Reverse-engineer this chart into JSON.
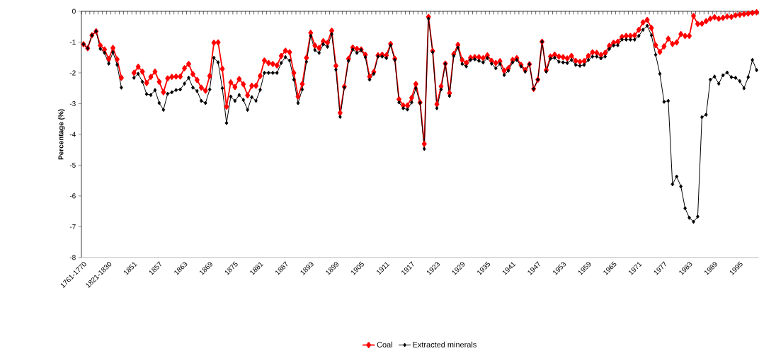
{
  "chart_data": {
    "type": "line",
    "ylabel": "Percentage (%)",
    "categories": [
      "1761-1770",
      null,
      null,
      null,
      null,
      null,
      "1821-1830",
      null,
      null,
      null,
      null,
      null,
      "1851",
      null,
      null,
      null,
      null,
      null,
      "1857",
      null,
      null,
      null,
      null,
      null,
      "1863",
      null,
      null,
      null,
      null,
      null,
      "1869",
      null,
      null,
      null,
      null,
      null,
      "1875",
      null,
      null,
      null,
      null,
      null,
      "1881",
      null,
      null,
      null,
      null,
      null,
      "1887",
      null,
      null,
      null,
      null,
      null,
      "1893",
      null,
      null,
      null,
      null,
      null,
      "1899",
      null,
      null,
      null,
      null,
      null,
      "1905",
      null,
      null,
      null,
      null,
      null,
      "1911",
      null,
      null,
      null,
      null,
      null,
      "1917",
      null,
      null,
      null,
      null,
      null,
      "1923",
      null,
      null,
      null,
      null,
      null,
      "1929",
      null,
      null,
      null,
      null,
      null,
      "1935",
      null,
      null,
      null,
      null,
      null,
      "1941",
      null,
      null,
      null,
      null,
      null,
      "1947",
      null,
      null,
      null,
      null,
      null,
      "1953",
      null,
      null,
      null,
      null,
      null,
      "1959",
      null,
      null,
      null,
      null,
      null,
      "1965",
      null,
      null,
      null,
      null,
      null,
      "1971",
      null,
      null,
      null,
      null,
      null,
      "1977",
      null,
      null,
      null,
      null,
      null,
      "1983",
      null,
      null,
      null,
      null,
      null,
      "1989",
      null,
      null,
      null,
      null,
      null,
      "1995",
      null,
      null,
      null,
      null
    ],
    "series": [
      {
        "name": "Coal",
        "color": "#ff0000",
        "values": [
          -1.07,
          -1.2,
          -0.78,
          -0.65,
          -1.11,
          -1.24,
          -1.55,
          -1.19,
          -1.56,
          -2.16,
          null,
          null,
          -2.0,
          -1.8,
          -1.96,
          -2.33,
          -2.13,
          -1.96,
          -2.29,
          -2.63,
          -2.18,
          -2.13,
          -2.12,
          -2.12,
          -1.85,
          -1.71,
          -2.04,
          -2.23,
          -2.48,
          -2.58,
          -2.1,
          -1.02,
          -1.01,
          -1.87,
          -3.1,
          -2.31,
          -2.46,
          -2.2,
          -2.37,
          -2.73,
          -2.42,
          -2.42,
          -2.1,
          -1.6,
          -1.68,
          -1.71,
          -1.76,
          -1.45,
          -1.28,
          -1.33,
          -2.0,
          -2.77,
          -2.36,
          -1.51,
          -0.7,
          -1.11,
          -1.19,
          -0.97,
          -1.02,
          -0.63,
          -1.77,
          -3.3,
          -2.45,
          -1.54,
          -1.18,
          -1.22,
          -1.24,
          -1.41,
          -2.12,
          -1.97,
          -1.43,
          -1.41,
          -1.43,
          -1.06,
          -1.54,
          -2.86,
          -3.06,
          -3.06,
          -2.81,
          -2.36,
          -2.96,
          -4.31,
          -0.18,
          -1.29,
          -3.02,
          -2.44,
          -1.7,
          -2.66,
          -1.39,
          -1.09,
          -1.58,
          -1.68,
          -1.51,
          -1.49,
          -1.49,
          -1.52,
          -1.43,
          -1.61,
          -1.68,
          -1.62,
          -1.93,
          -1.85,
          -1.58,
          -1.52,
          -1.74,
          -1.91,
          -1.72,
          -2.52,
          -2.22,
          -0.99,
          -1.91,
          -1.47,
          -1.41,
          -1.47,
          -1.49,
          -1.53,
          -1.45,
          -1.61,
          -1.64,
          -1.62,
          -1.45,
          -1.33,
          -1.35,
          -1.42,
          -1.35,
          -1.12,
          -1.02,
          -0.99,
          -0.83,
          -0.8,
          -0.8,
          -0.78,
          -0.6,
          -0.36,
          -0.28,
          -0.54,
          -1.1,
          -1.32,
          -1.14,
          -0.89,
          -1.06,
          -1.01,
          -0.74,
          -0.8,
          -0.8,
          -0.15,
          -0.41,
          -0.4,
          -0.32,
          -0.24,
          -0.19,
          -0.24,
          -0.21,
          -0.17,
          -0.18,
          -0.13,
          -0.11,
          -0.09,
          -0.07,
          -0.05,
          -0.03
        ]
      },
      {
        "name": "Extracted minerals",
        "color": "#000000",
        "values": [
          -1.07,
          -1.2,
          -0.78,
          -0.65,
          -1.22,
          -1.35,
          -1.7,
          -1.33,
          -1.74,
          -2.48,
          null,
          null,
          -2.16,
          -2.03,
          -2.29,
          -2.69,
          -2.72,
          -2.56,
          -2.98,
          -3.2,
          -2.68,
          -2.63,
          -2.56,
          -2.54,
          -2.35,
          -2.16,
          -2.48,
          -2.59,
          -2.91,
          -2.98,
          -2.54,
          -1.51,
          -1.66,
          -2.5,
          -3.63,
          -2.77,
          -2.91,
          -2.72,
          -2.88,
          -3.2,
          -2.79,
          -2.91,
          -2.55,
          -2.0,
          -2.0,
          -2.0,
          -2.0,
          -1.68,
          -1.49,
          -1.6,
          -2.22,
          -2.98,
          -2.54,
          -1.64,
          -0.8,
          -1.26,
          -1.35,
          -1.07,
          -1.15,
          -0.74,
          -1.9,
          -3.43,
          -2.48,
          -1.61,
          -1.24,
          -1.35,
          -1.26,
          -1.49,
          -2.22,
          -2.03,
          -1.47,
          -1.47,
          -1.52,
          -1.11,
          -1.58,
          -2.96,
          -3.15,
          -3.19,
          -2.96,
          -2.5,
          -2.98,
          -4.47,
          -0.24,
          -1.33,
          -3.15,
          -2.54,
          -1.71,
          -2.75,
          -1.45,
          -1.18,
          -1.71,
          -1.79,
          -1.58,
          -1.56,
          -1.61,
          -1.66,
          -1.52,
          -1.7,
          -1.85,
          -1.71,
          -2.07,
          -1.93,
          -1.66,
          -1.58,
          -1.79,
          -1.96,
          -1.72,
          -2.52,
          -2.22,
          -0.99,
          -1.96,
          -1.54,
          -1.51,
          -1.64,
          -1.66,
          -1.68,
          -1.58,
          -1.74,
          -1.77,
          -1.74,
          -1.58,
          -1.47,
          -1.47,
          -1.53,
          -1.47,
          -1.22,
          -1.11,
          -1.1,
          -0.92,
          -0.92,
          -0.92,
          -0.92,
          -0.8,
          -0.6,
          -0.47,
          -0.78,
          -1.41,
          -2.03,
          -2.94,
          -2.91,
          -5.62,
          -5.37,
          -5.69,
          -6.4,
          -6.71,
          -6.84,
          -6.67,
          -3.44,
          -3.36,
          -2.22,
          -2.12,
          -2.35,
          -2.08,
          -1.99,
          -2.14,
          -2.16,
          -2.27,
          -2.5,
          -2.14,
          -1.58,
          -1.91
        ]
      }
    ],
    "ylim": [
      -8,
      0
    ],
    "yticks": [
      -8,
      -7,
      -6,
      -5,
      -4,
      -3,
      -2,
      -1,
      0
    ],
    "legend": "bottom",
    "marker": "diamond"
  }
}
